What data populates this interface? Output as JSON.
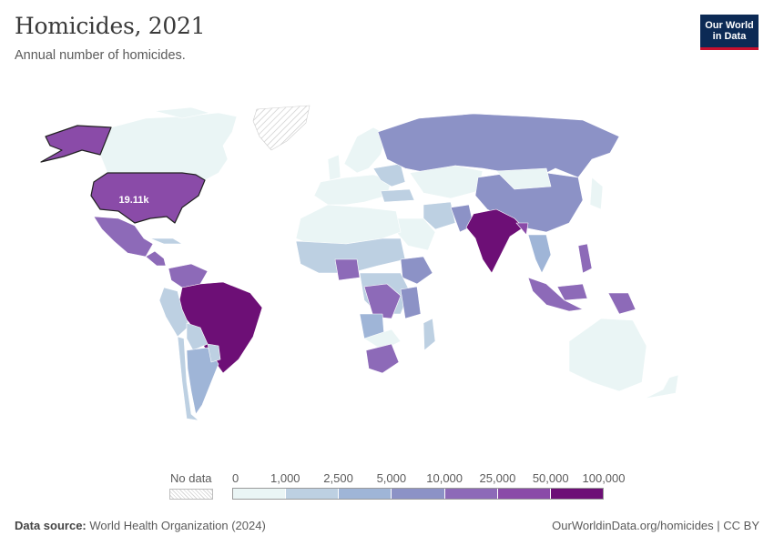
{
  "header": {
    "title": "Homicides, 2021",
    "subtitle": "Annual number of homicides.",
    "logo_line1": "Our World",
    "logo_line2": "in Data"
  },
  "map": {
    "annotation": "19.11k",
    "colors": {
      "b0": "#eaf5f5",
      "b1": "#bdd0e2",
      "b2": "#9fb5d7",
      "b3": "#8c92c6",
      "b4": "#8d6ab8",
      "b5": "#8a4ba8",
      "b6": "#6d0f76",
      "b7": "#5e0a68",
      "nodata": "#efefef"
    }
  },
  "legend": {
    "nodata_label": "No data",
    "ticks": [
      "0",
      "1,000",
      "2,500",
      "5,000",
      "10,000",
      "25,000",
      "50,000",
      "100,000"
    ],
    "bins": [
      "#eaf5f5",
      "#bdd0e2",
      "#9fb5d7",
      "#8c92c6",
      "#8d6ab8",
      "#8a4ba8",
      "#6d0f76"
    ]
  },
  "footer": {
    "source_label": "Data source:",
    "source_text": "World Health Organization (2024)",
    "credit": "OurWorldinData.org/homicides | CC BY"
  }
}
